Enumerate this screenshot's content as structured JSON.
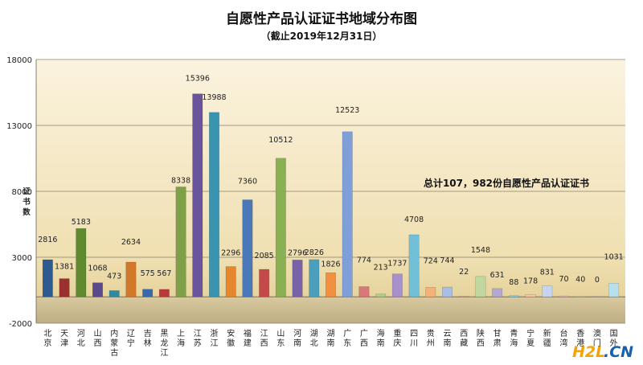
{
  "chart_data": {
    "type": "bar",
    "title": "自愿性产品认证证书地域分布图",
    "subtitle": "（截止2019年12月31日）",
    "ylabel": "证书数",
    "ylim": [
      -2000,
      18000
    ],
    "yticks": [
      -2000,
      3000,
      8000,
      13000,
      18000
    ],
    "ytick_labels": [
      "-2000",
      "3000",
      "8000",
      "13000",
      "18000"
    ],
    "grid": true,
    "annotation": "总计107，982份自愿性产品认证证书",
    "categories": [
      "北京",
      "天津",
      "河北",
      "山西",
      "内蒙古",
      "辽宁",
      "吉林",
      "黑龙江",
      "上海",
      "江苏",
      "浙江",
      "安徽",
      "福建",
      "江西",
      "山东",
      "河南",
      "湖北",
      "湖南",
      "广东",
      "广西",
      "海南",
      "重庆",
      "四川",
      "贵州",
      "云南",
      "西藏",
      "陕西",
      "甘肃",
      "青海",
      "宁夏",
      "新疆",
      "台湾",
      "香港",
      "澳门",
      "国外"
    ],
    "values": [
      2816,
      1381,
      5183,
      1068,
      473,
      2634,
      575,
      567,
      8338,
      15396,
      13988,
      2296,
      7360,
      2085,
      10512,
      2796,
      2826,
      1826,
      12523,
      774,
      213,
      1737,
      4708,
      724,
      744,
      22,
      1548,
      631,
      88,
      178,
      831,
      70,
      40,
      0,
      1031
    ],
    "colors": [
      "#2f5a8f",
      "#9c2f2f",
      "#5f8a2f",
      "#5a4a8a",
      "#2f8aa0",
      "#d2782a",
      "#3a68a8",
      "#b83a3a",
      "#7fa048",
      "#6a559c",
      "#3a94b0",
      "#e6872e",
      "#4a78b8",
      "#c44a4a",
      "#8ab054",
      "#7a62a8",
      "#4aa0bc",
      "#f09040",
      "#7f9fd8",
      "#d87878",
      "#b0cc88",
      "#a890cc",
      "#72c0d8",
      "#f6b07a",
      "#a8bee4",
      "#e0a0a0",
      "#c0d8a0",
      "#b4a8d0",
      "#8cd0e0",
      "#f8c8a0",
      "#c8d4ee",
      "#ecc0c0",
      "#d8e8c0",
      "#d0c8e4",
      "#b8e0ec"
    ]
  },
  "watermark": {
    "text_a": "H2L",
    "text_b": ".CN"
  }
}
